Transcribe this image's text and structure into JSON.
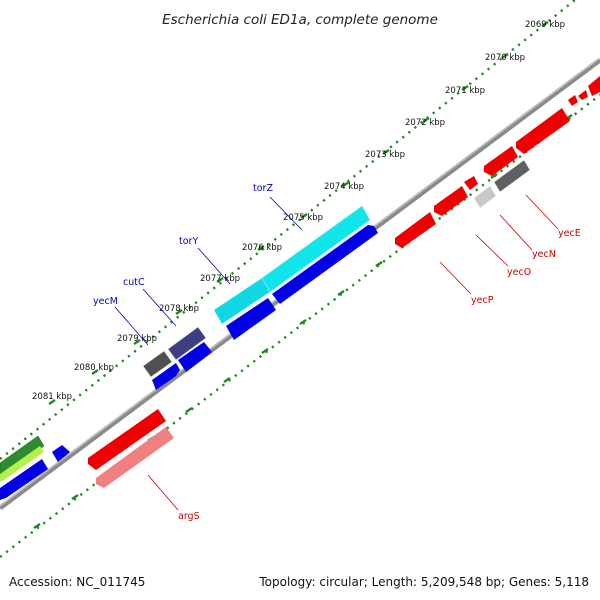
{
  "title": "Escherichia coli ED1a, complete genome",
  "accession": "Accession: NC_011745",
  "summary": "Topology: circular; Length: 5,209,548 bp; Genes: 5,118",
  "colors": {
    "backbone": "#8a8a8a",
    "ticks": "#1e8a1e",
    "forward_cds": "#0000e6",
    "reverse_cds": "#ee0000",
    "label_forward": "#0000cc",
    "label_reverse": "#cc0000"
  },
  "ticks": [
    "2069 kbp",
    "2070 kbp",
    "2071 kbp",
    "2072 kbp",
    "2073 kbp",
    "2074 kbp",
    "2075 kbp",
    "2076 kbp",
    "2077 kbp",
    "2078 kbp",
    "2079 kbp",
    "2080 kbp",
    "2081 kbp"
  ],
  "gene_labels": [
    {
      "name": "torZ",
      "strand": "forward"
    },
    {
      "name": "torY",
      "strand": "forward"
    },
    {
      "name": "cutC",
      "strand": "forward"
    },
    {
      "name": "yecM",
      "strand": "forward"
    },
    {
      "name": "yecE",
      "strand": "reverse"
    },
    {
      "name": "yecN",
      "strand": "reverse"
    },
    {
      "name": "yecO",
      "strand": "reverse"
    },
    {
      "name": "yecP",
      "strand": "reverse"
    },
    {
      "name": "argS",
      "strand": "reverse"
    }
  ]
}
